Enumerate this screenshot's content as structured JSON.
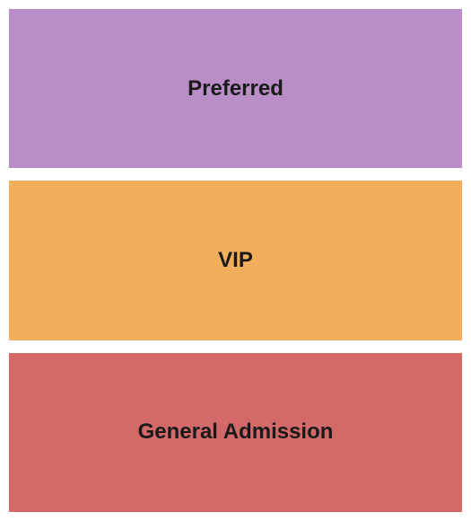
{
  "seating_chart": {
    "type": "infographic",
    "background_color": "#ffffff",
    "gap": 14,
    "padding": 10,
    "label_fontsize": 24,
    "label_fontweight": "bold",
    "label_color": "#1a1a1a",
    "sections": [
      {
        "label": "Preferred",
        "color": "#b98ec6"
      },
      {
        "label": "VIP",
        "color": "#f1ae5b"
      },
      {
        "label": "General Admission",
        "color": "#d4696a"
      }
    ]
  }
}
